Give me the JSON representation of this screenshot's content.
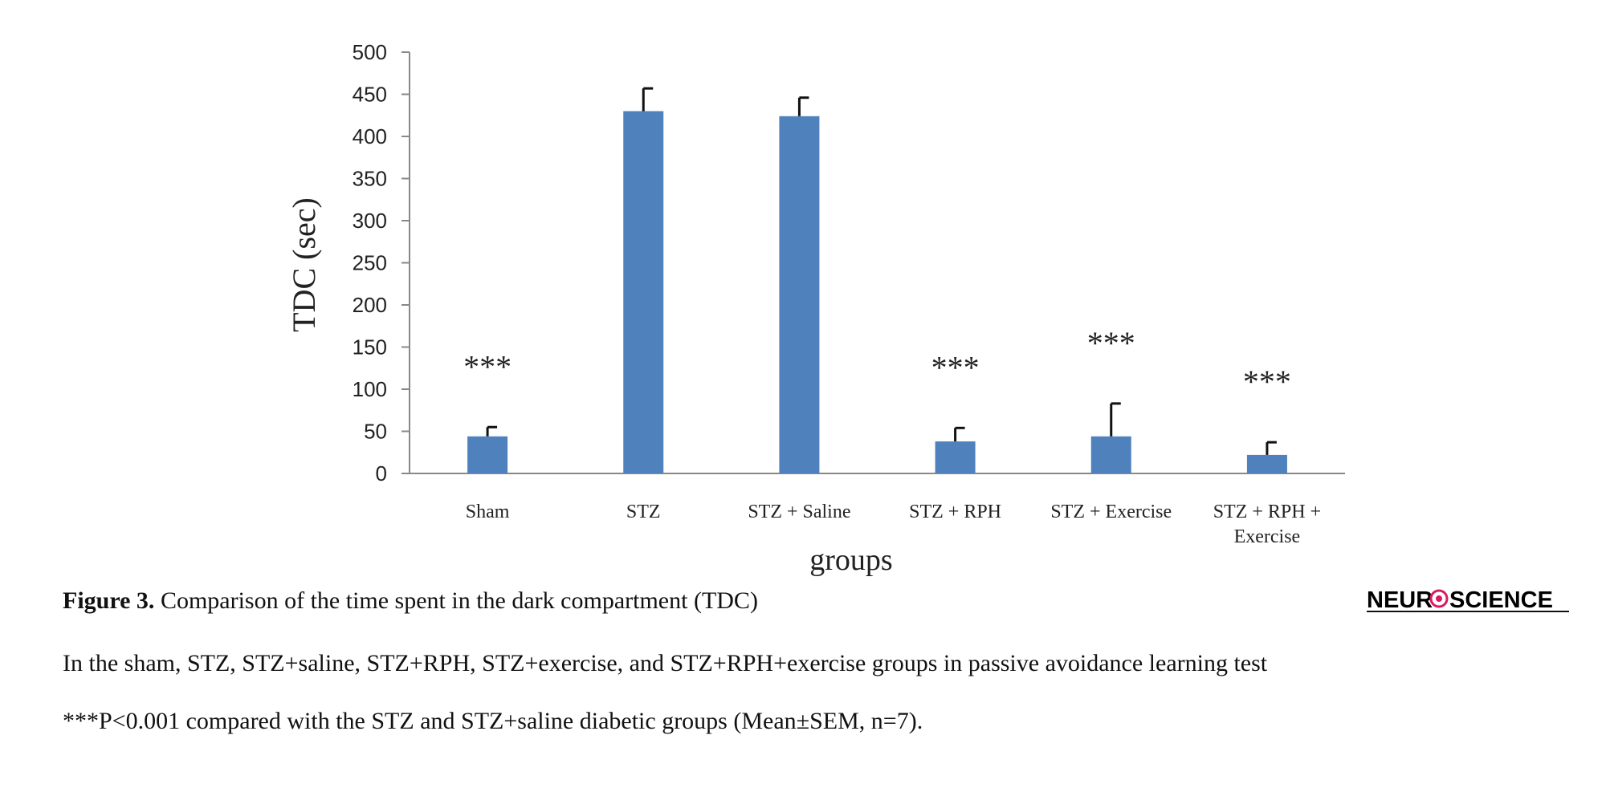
{
  "chart_data": {
    "type": "bar",
    "ylabel": "TDC (sec)",
    "xlabel": "groups",
    "ylim": [
      0,
      500
    ],
    "yticks": [
      0,
      50,
      100,
      150,
      200,
      250,
      300,
      350,
      400,
      450,
      500
    ],
    "categories": [
      [
        "Sham"
      ],
      [
        "STZ"
      ],
      [
        "STZ + Saline"
      ],
      [
        "STZ + RPH"
      ],
      [
        "STZ + Exercise"
      ],
      [
        "STZ + RPH +",
        "Exercise"
      ]
    ],
    "values": [
      44,
      430,
      424,
      38,
      44,
      22
    ],
    "error": [
      11,
      27,
      22,
      16,
      39,
      15
    ],
    "annotations": [
      "***",
      "",
      "",
      "***",
      "***",
      "***"
    ],
    "bar_color": "#4f81bd",
    "grid": false
  },
  "caption": {
    "figure_label": "Figure 3.",
    "title": "Comparison of the time spent in the dark compartment (TDC)",
    "line2": "In the sham, STZ, STZ+saline, STZ+RPH, STZ+exercise, and STZ+RPH+exercise groups in passive avoidance learning test",
    "line3": "***P<0.001 compared with the STZ and STZ+saline diabetic groups (Mean±SEM, n=7)."
  },
  "logo": {
    "text_left": "NEUR",
    "text_right": "SCIENCE",
    "color": "#111111",
    "accent": "#d81b60"
  }
}
